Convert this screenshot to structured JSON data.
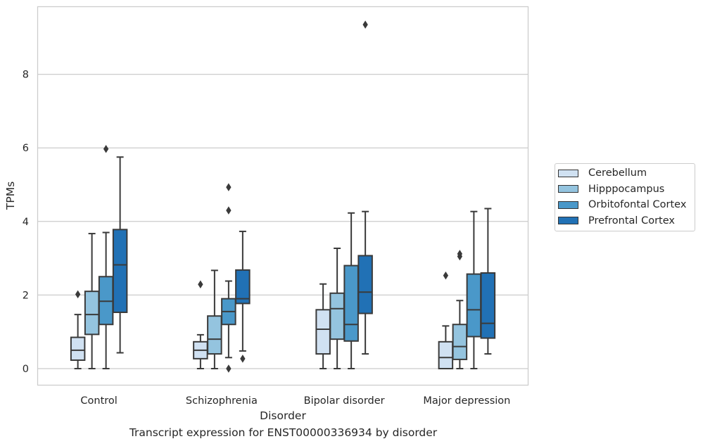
{
  "chart_data": {
    "type": "box",
    "xlabel": "Disorder",
    "ylabel": "TPMs",
    "caption": "Transcript expression for ENST00000336934 by disorder",
    "ylim": [
      -0.45,
      9.9
    ],
    "yticks": [
      0,
      2,
      4,
      6,
      8
    ],
    "grid": "horizontal",
    "legend_position": "right",
    "categories": [
      "Control",
      "Schizophrenia",
      "Bipolar disorder",
      "Major depression"
    ],
    "series": [
      {
        "name": "Cerebellum",
        "color": "#d0e1f2",
        "boxes": [
          {
            "whisker_low": 0.0,
            "q1": 0.23,
            "median": 0.5,
            "q3": 0.85,
            "whisker_high": 1.47,
            "outliers": [
              2.02
            ]
          },
          {
            "whisker_low": 0.0,
            "q1": 0.27,
            "median": 0.5,
            "q3": 0.73,
            "whisker_high": 0.92,
            "outliers": [
              2.29
            ]
          },
          {
            "whisker_low": 0.0,
            "q1": 0.4,
            "median": 1.07,
            "q3": 1.6,
            "whisker_high": 2.3,
            "outliers": []
          },
          {
            "whisker_low": 0.0,
            "q1": 0.0,
            "median": 0.3,
            "q3": 0.73,
            "whisker_high": 1.16,
            "outliers": [
              2.53
            ]
          }
        ]
      },
      {
        "name": "Hipppocampus",
        "color": "#94c4df",
        "boxes": [
          {
            "whisker_low": 0.0,
            "q1": 0.93,
            "median": 1.47,
            "q3": 2.1,
            "whisker_high": 3.67,
            "outliers": []
          },
          {
            "whisker_low": 0.0,
            "q1": 0.4,
            "median": 0.8,
            "q3": 1.43,
            "whisker_high": 2.67,
            "outliers": []
          },
          {
            "whisker_low": 0.0,
            "q1": 0.8,
            "median": 1.63,
            "q3": 2.05,
            "whisker_high": 3.27,
            "outliers": []
          },
          {
            "whisker_low": 0.0,
            "q1": 0.25,
            "median": 0.6,
            "q3": 1.2,
            "whisker_high": 1.85,
            "outliers": [
              3.05,
              3.12
            ]
          }
        ]
      },
      {
        "name": "Orbitofontal Cortex",
        "color": "#4a98c9",
        "boxes": [
          {
            "whisker_low": 0.0,
            "q1": 1.2,
            "median": 1.83,
            "q3": 2.5,
            "whisker_high": 3.7,
            "outliers": [
              5.97
            ]
          },
          {
            "whisker_low": 0.3,
            "q1": 1.2,
            "median": 1.55,
            "q3": 1.9,
            "whisker_high": 2.38,
            "outliers": [
              0.0,
              4.3,
              4.93
            ]
          },
          {
            "whisker_low": 0.0,
            "q1": 0.75,
            "median": 1.2,
            "q3": 2.8,
            "whisker_high": 4.23,
            "outliers": []
          },
          {
            "whisker_low": 0.0,
            "q1": 0.87,
            "median": 1.6,
            "q3": 2.57,
            "whisker_high": 4.27,
            "outliers": []
          }
        ]
      },
      {
        "name": "Prefrontal Cortex",
        "color": "#2171b5",
        "boxes": [
          {
            "whisker_low": 0.43,
            "q1": 1.53,
            "median": 2.82,
            "q3": 3.78,
            "whisker_high": 5.75,
            "outliers": []
          },
          {
            "whisker_low": 0.48,
            "q1": 1.77,
            "median": 1.9,
            "q3": 2.68,
            "whisker_high": 3.73,
            "outliers": [
              0.27
            ]
          },
          {
            "whisker_low": 0.4,
            "q1": 1.5,
            "median": 2.08,
            "q3": 3.07,
            "whisker_high": 4.27,
            "outliers": [
              9.35
            ]
          },
          {
            "whisker_low": 0.4,
            "q1": 0.83,
            "median": 1.23,
            "q3": 2.6,
            "whisker_high": 4.35,
            "outliers": []
          }
        ]
      }
    ]
  }
}
